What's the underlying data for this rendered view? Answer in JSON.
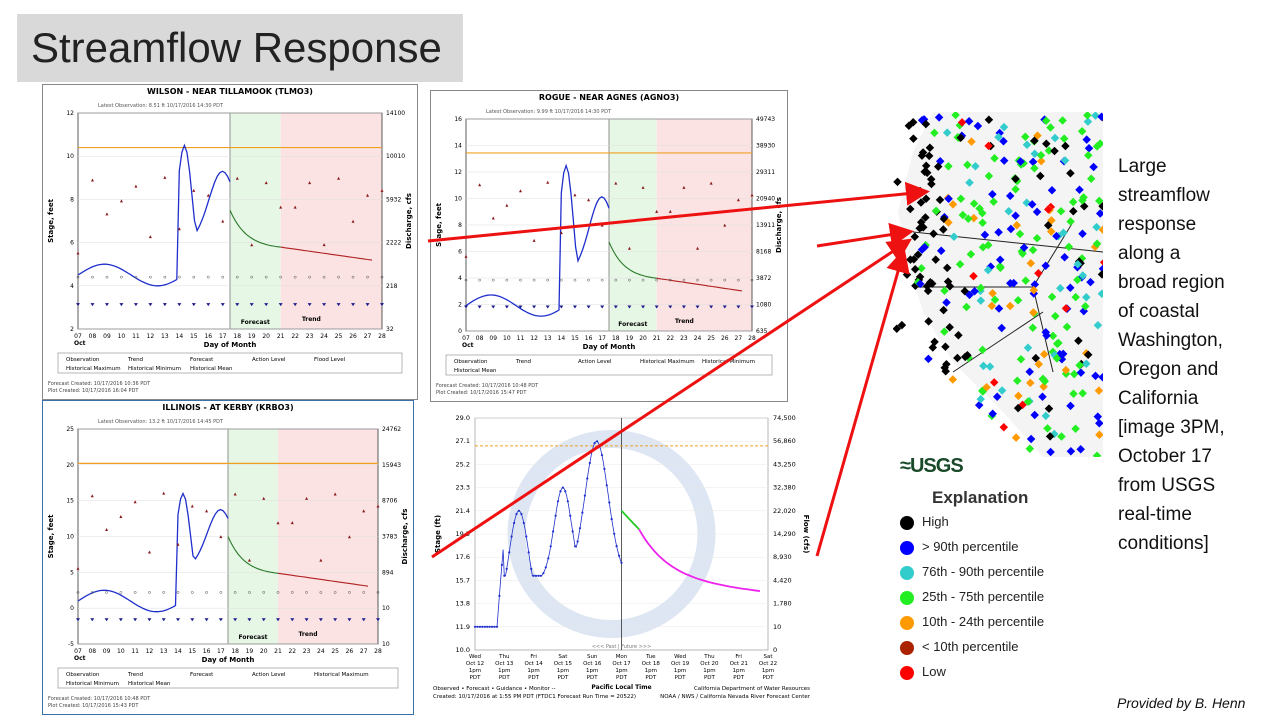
{
  "slide": {
    "title": "Streamflow Response",
    "side_text": [
      "Large",
      "streamflow",
      "response",
      "along a",
      "broad region",
      "of coastal",
      "Washington,",
      "Oregon and",
      "California",
      "[image 3PM,",
      "October 17",
      "from USGS",
      "real-time",
      "conditions]"
    ],
    "credit": "Provided by B. Henn"
  },
  "usgs": {
    "logo": "≈USGS",
    "legend_title": "Explanation",
    "legend": [
      {
        "label": "High",
        "color": "#000000"
      },
      {
        "label": "> 90th percentile",
        "color": "#0000ff"
      },
      {
        "label": "76th - 90th percentile",
        "color": "#33cccc"
      },
      {
        "label": "25th - 75th percentile",
        "color": "#22ee22"
      },
      {
        "label": "10th - 24th percentile",
        "color": "#ff9900"
      },
      {
        "label": "< 10th percentile",
        "color": "#aa2200"
      },
      {
        "label": "Low",
        "color": "#ff0000"
      }
    ]
  },
  "hydrographs": [
    {
      "title": "WILSON - NEAR TILLAMOOK (TLMO3)",
      "latest": "Latest Observation: 8.51 ft 10/17/2016 14:30 PDT",
      "xlabel": "Day of Month",
      "ylabel": "Stage, feet",
      "y2label": "Discharge, cfs",
      "month": "Oct",
      "forecast_label": "Forecast",
      "trend_label": "Trend",
      "days": [
        "07",
        "08",
        "09",
        "10",
        "11",
        "12",
        "13",
        "14",
        "15",
        "16",
        "17",
        "18",
        "19",
        "20",
        "21",
        "22",
        "23",
        "24",
        "25",
        "26",
        "27",
        "28"
      ],
      "yticks": [
        "2",
        "4",
        "6",
        "8",
        "10",
        "12"
      ],
      "y2ticks": [
        "32",
        "218",
        "2222",
        "5932",
        "10010",
        "14100"
      ],
      "legend": [
        "Observation",
        "Trend",
        "Forecast",
        "Action Level",
        "Flood Level",
        "Historical Maximum",
        "Historical Minimum",
        "Historical Mean"
      ],
      "created": [
        "Forecast Created: 10/17/2016 10:36 PDT",
        "Plot Created: 10/17/2016 16:04 PDT"
      ]
    },
    {
      "title": "ROGUE - NEAR AGNES (AGNO3)",
      "latest": "Latest Observation: 9.99 ft 10/17/2016 14:30 PDT",
      "xlabel": "Day of Month",
      "ylabel": "Stage, feet",
      "y2label": "Discharge, cfs",
      "month": "Oct",
      "forecast_label": "Forecast",
      "trend_label": "Trend",
      "days": [
        "07",
        "08",
        "09",
        "10",
        "11",
        "12",
        "13",
        "14",
        "15",
        "16",
        "17",
        "18",
        "19",
        "20",
        "21",
        "22",
        "23",
        "24",
        "25",
        "26",
        "27",
        "28"
      ],
      "yticks": [
        "0",
        "2",
        "4",
        "6",
        "8",
        "10",
        "12",
        "14",
        "16"
      ],
      "y2ticks": [
        "635",
        "1080",
        "3872",
        "8168",
        "13911",
        "20940",
        "29311",
        "38930",
        "49743"
      ],
      "legend": [
        "Observation",
        "Trend",
        "Action Level",
        "Historical Maximum",
        "Historical Minimum",
        "Historical Mean"
      ],
      "created": [
        "Forecast Created: 10/17/2016 10:48 PDT",
        "Plot Created: 10/17/2016 15:47 PDT"
      ]
    },
    {
      "title": "ILLINOIS - AT KERBY (KRBO3)",
      "latest": "Latest Observation: 13.2 ft 10/17/2016 14:45 PDT",
      "xlabel": "Day of Month",
      "ylabel": "Stage, feet",
      "y2label": "Discharge, cfs",
      "month": "Oct",
      "forecast_label": "Forecast",
      "trend_label": "Trend",
      "days": [
        "07",
        "08",
        "09",
        "10",
        "11",
        "12",
        "13",
        "14",
        "15",
        "16",
        "17",
        "18",
        "19",
        "20",
        "21",
        "22",
        "23",
        "24",
        "25",
        "26",
        "27",
        "28"
      ],
      "yticks": [
        "-5",
        "0",
        "5",
        "10",
        "15",
        "20",
        "25"
      ],
      "y2ticks": [
        "10",
        "10",
        "894",
        "3783",
        "8706",
        "15943",
        "24762"
      ],
      "legend": [
        "Observation",
        "Trend",
        "Forecast",
        "Action Level",
        "Historical Maximum",
        "Historical Minimum",
        "Historical Mean"
      ],
      "created": [
        "Forecast Created: 10/17/2016 10:48 PDT",
        "Plot Created: 10/17/2016 15:43 PDT"
      ]
    }
  ],
  "cnrfc": {
    "yleft": [
      "11.9",
      "13.8",
      "15.7",
      "17.6",
      "19.5",
      "21.4",
      "23.3",
      "25.2",
      "27.1",
      "29.0"
    ],
    "yleft_bottom": "10.0",
    "yright": [
      "0",
      "10",
      "1,780",
      "4,420",
      "8,930",
      "14,290",
      "22,020",
      "32,380",
      "43,250",
      "56,860",
      "74,500"
    ],
    "ylabel": "Stage (ft)",
    "y2label": "Flow (cfs)",
    "days": [
      [
        "Wed",
        "Oct 12",
        "1pm",
        "PDT"
      ],
      [
        "Thu",
        "Oct 13",
        "1pm",
        "PDT"
      ],
      [
        "Fri",
        "Oct 14",
        "1pm",
        "PDT"
      ],
      [
        "Sat",
        "Oct 15",
        "1pm",
        "PDT"
      ],
      [
        "Sun",
        "Oct 16",
        "1pm",
        "PDT"
      ],
      [
        "Mon",
        "Oct 17",
        "1pm",
        "PDT"
      ],
      [
        "Tue",
        "Oct 18",
        "1pm",
        "PDT"
      ],
      [
        "Wed",
        "Oct 19",
        "1pm",
        "PDT"
      ],
      [
        "Thu",
        "Oct 20",
        "1pm",
        "PDT"
      ],
      [
        "Fri",
        "Oct 21",
        "1pm",
        "PDT"
      ],
      [
        "Sat",
        "Oct 22",
        "1pm",
        "PDT"
      ]
    ],
    "xlabel": "Pacific Local Time",
    "past_future": "<<< Past | Future >>>",
    "legend": "Observed  • Forecast  • Guidance  • Monitor  -- ",
    "created": "Created: 10/17/2016 at 1:55 PM PDT    (FTDC1 Forecast Run Time = 20522)",
    "agency1": "California Department of Water Resources",
    "agency2": "NOAA / NWS / California Nevada River Forecast Center"
  }
}
